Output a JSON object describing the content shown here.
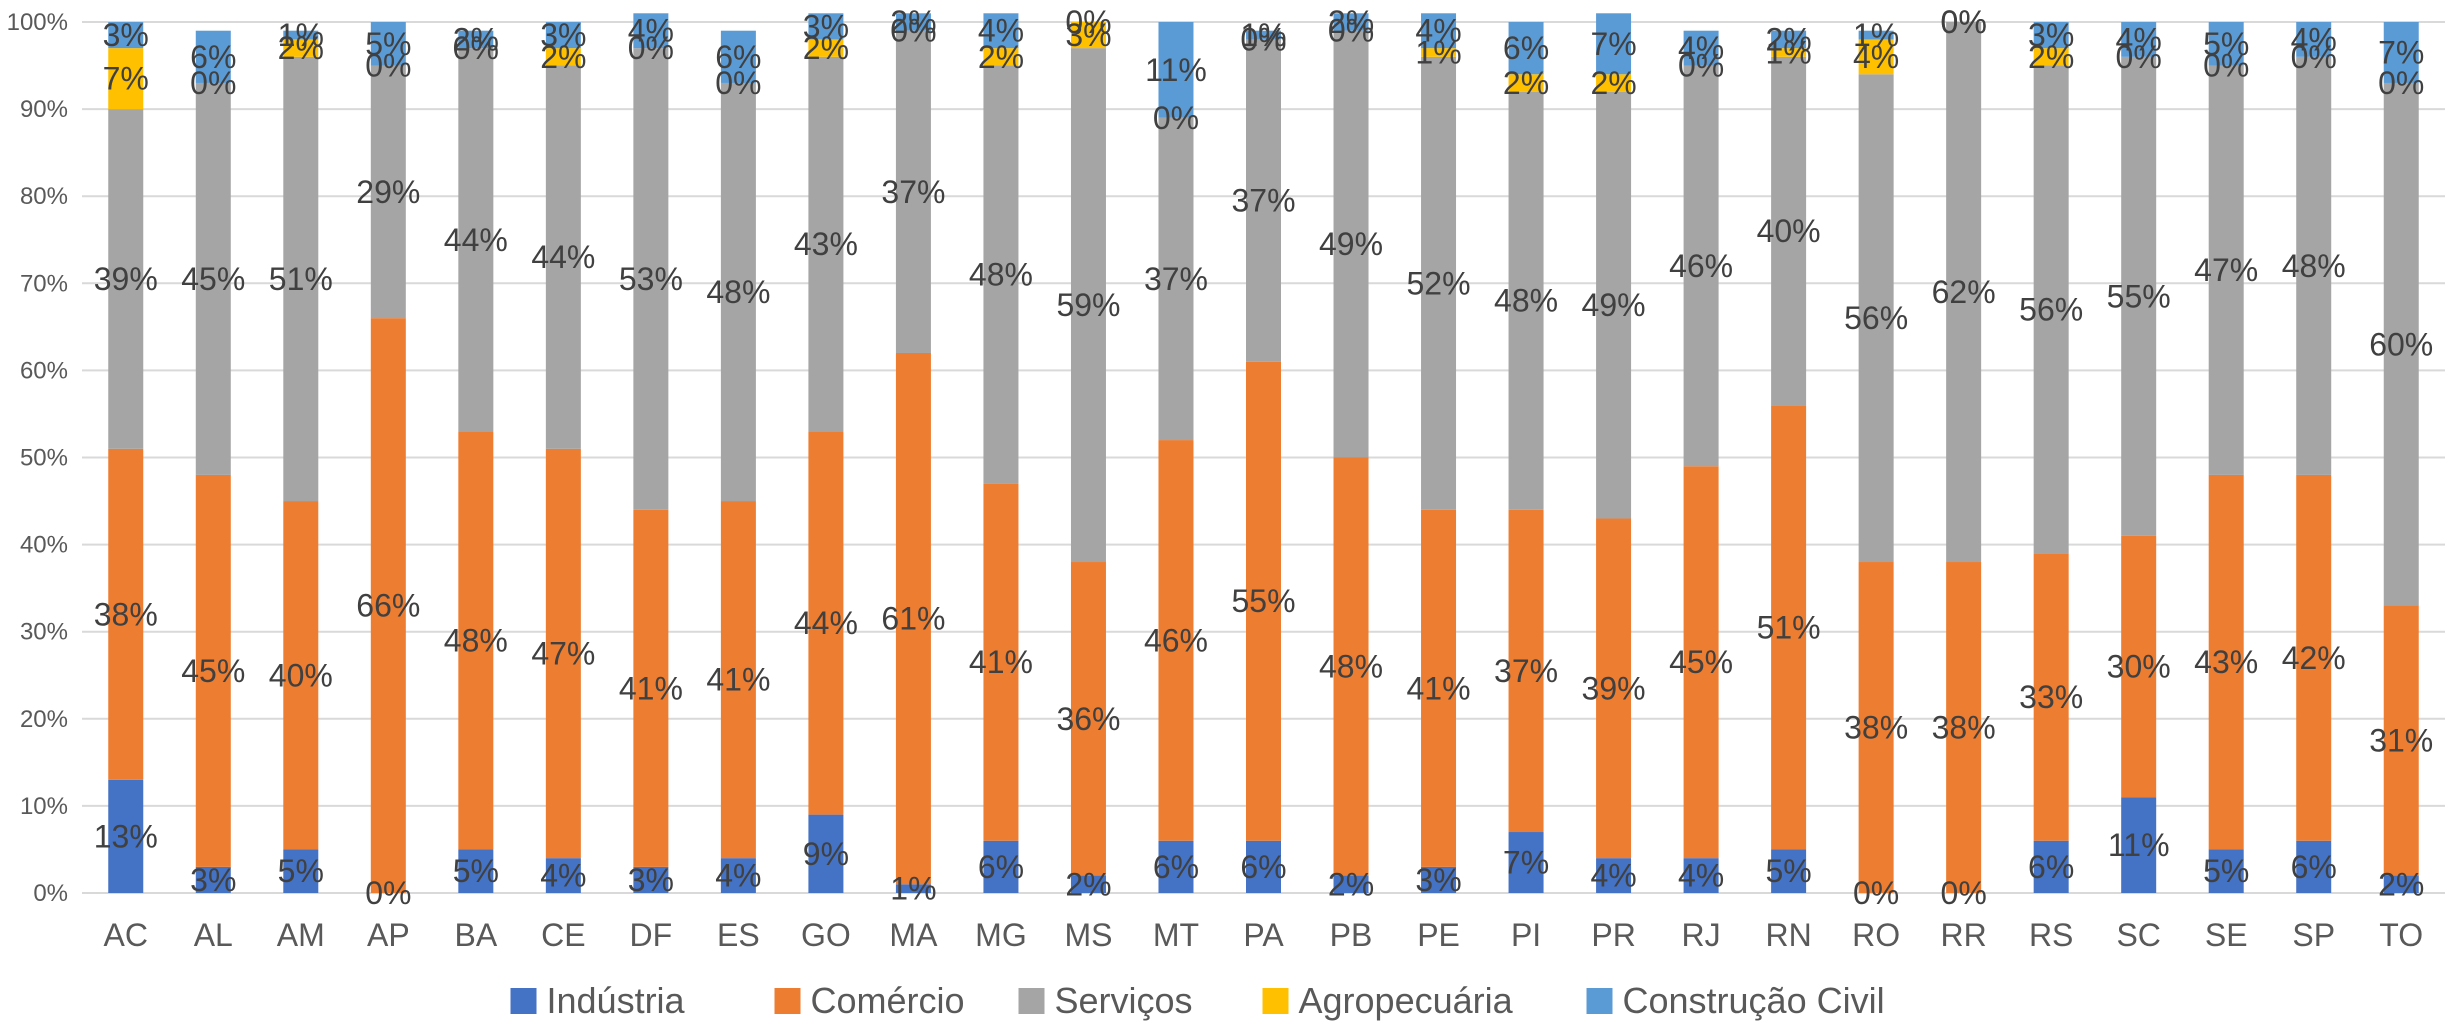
{
  "chart_data": {
    "type": "bar",
    "stacked": true,
    "normalized": true,
    "title": "",
    "xlabel": "",
    "ylabel": "",
    "ylim": [
      0,
      100
    ],
    "y_ticks": [
      "0%",
      "10%",
      "20%",
      "30%",
      "40%",
      "50%",
      "60%",
      "70%",
      "80%",
      "90%",
      "100%"
    ],
    "grid": true,
    "legend_position": "bottom",
    "categories": [
      "AC",
      "AL",
      "AM",
      "AP",
      "BA",
      "CE",
      "DF",
      "ES",
      "GO",
      "MA",
      "MG",
      "MS",
      "MT",
      "PA",
      "PB",
      "PE",
      "PI",
      "PR",
      "RJ",
      "RN",
      "RO",
      "RR",
      "RS",
      "SC",
      "SE",
      "SP",
      "TO"
    ],
    "series": [
      {
        "name": "Indústria",
        "color": "#4472C4",
        "values": [
          13,
          3,
          5,
          0,
          5,
          4,
          3,
          4,
          9,
          1,
          6,
          2,
          6,
          6,
          2,
          3,
          7,
          4,
          4,
          5,
          0,
          0,
          6,
          11,
          5,
          6,
          2
        ],
        "labels": [
          "13%",
          "3%",
          "5%",
          "0%",
          "5%",
          "4%",
          "3%",
          "4%",
          "9%",
          "1%",
          "6%",
          "2%",
          "6%",
          "6%",
          "2%",
          "3%",
          "7%",
          "4%",
          "4%",
          "5%",
          "0%",
          "0%",
          "6%",
          "11%",
          "5%",
          "6%",
          "2%"
        ]
      },
      {
        "name": "Comércio",
        "color": "#ED7D31",
        "values": [
          38,
          45,
          40,
          66,
          48,
          47,
          41,
          41,
          44,
          61,
          41,
          36,
          46,
          55,
          48,
          41,
          37,
          39,
          45,
          51,
          38,
          38,
          33,
          30,
          43,
          42,
          31
        ],
        "labels": [
          "38%",
          "45%",
          "40%",
          "66%",
          "48%",
          "47%",
          "41%",
          "41%",
          "44%",
          "61%",
          "41%",
          "36%",
          "46%",
          "55%",
          "48%",
          "41%",
          "37%",
          "39%",
          "45%",
          "51%",
          "38%",
          "38%",
          "33%",
          "30%",
          "43%",
          "42%",
          "31%"
        ]
      },
      {
        "name": "Serviços",
        "color": "#A5A5A5",
        "values": [
          39,
          45,
          51,
          29,
          44,
          44,
          53,
          48,
          43,
          37,
          48,
          59,
          37,
          37,
          49,
          52,
          48,
          49,
          46,
          40,
          56,
          62,
          56,
          55,
          47,
          48,
          60
        ],
        "labels": [
          "39%",
          "45%",
          "51%",
          "29%",
          "44%",
          "44%",
          "53%",
          "48%",
          "43%",
          "37%",
          "48%",
          "59%",
          "37%",
          "37%",
          "49%",
          "52%",
          "48%",
          "49%",
          "46%",
          "40%",
          "56%",
          "62%",
          "56%",
          "55%",
          "47%",
          "48%",
          "60%"
        ]
      },
      {
        "name": "Agropecuária",
        "color": "#FFC000",
        "values": [
          7,
          0,
          2,
          0,
          0,
          2,
          0,
          0,
          2,
          0,
          2,
          3,
          0,
          0,
          0,
          1,
          2,
          2,
          0,
          1,
          4,
          0,
          2,
          0,
          0,
          0,
          0
        ],
        "labels": [
          "7%",
          "0%",
          "2%",
          "0%",
          "0%",
          "2%",
          "0%",
          "0%",
          "2%",
          "0%",
          "2%",
          "3%",
          "0%",
          "0%",
          "0%",
          "1%",
          "2%",
          "2%",
          "0%",
          "1%",
          "4%",
          "0%",
          "2%",
          "0%",
          "0%",
          "0%",
          "0%"
        ]
      },
      {
        "name": "Construção Civil",
        "color": "#5B9BD5",
        "values": [
          3,
          6,
          1,
          5,
          2,
          3,
          4,
          6,
          3,
          2,
          4,
          0,
          11,
          1,
          2,
          4,
          6,
          7,
          4,
          2,
          1,
          0,
          3,
          4,
          5,
          4,
          7
        ],
        "labels": [
          "3%",
          "6%",
          "1%",
          "5%",
          "2%",
          "3%",
          "4%",
          "6%",
          "3%",
          "2%",
          "4%",
          "0%",
          "11%",
          "1%",
          "2%",
          "4%",
          "6%",
          "7%",
          "4%",
          "2%",
          "1%",
          "0%",
          "3%",
          "4%",
          "5%",
          "4%",
          "7%"
        ]
      }
    ]
  }
}
